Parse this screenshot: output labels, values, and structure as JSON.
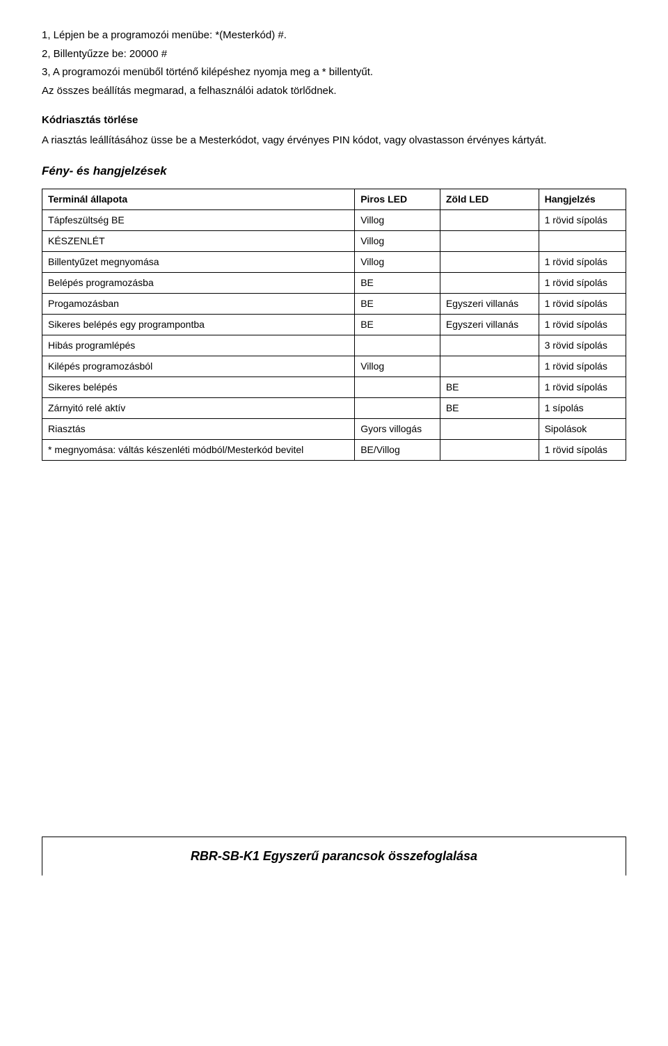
{
  "intro": {
    "line1": "1, Lépjen be a programozói menübe: *(Mesterkód) #.",
    "line2": "2, Billentyűzze be: 20000 #",
    "line3": "3, A programozói menüből történő kilépéshez nyomja meg a * billentyűt.",
    "line4": "Az összes beállítás megmarad, a felhasználói adatok törlődnek."
  },
  "kodriasztas": {
    "title": "Kódriasztás törlése",
    "body": "A riasztás leállításához üsse be a Mesterkódot, vagy érvényes PIN kódot, vagy olvastasson érvényes kártyát."
  },
  "feny": {
    "title": "Fény- és hangjelzések"
  },
  "table": {
    "headers": {
      "c0": "Terminál állapota",
      "c1": "Piros LED",
      "c2": "Zöld LED",
      "c3": "Hangjelzés"
    },
    "rows": [
      {
        "c0": "Tápfeszültség BE",
        "c1": "Villog",
        "c2": "",
        "c3": "1 rövid sípolás"
      },
      {
        "c0": "KÉSZENLÉT",
        "c1": "Villog",
        "c2": "",
        "c3": ""
      },
      {
        "c0": "Billentyűzet megnyomása",
        "c1": "Villog",
        "c2": "",
        "c3": "1 rövid sípolás"
      },
      {
        "c0": "Belépés programozásba",
        "c1": "BE",
        "c2": "",
        "c3": "1 rövid sípolás"
      },
      {
        "c0": "Progamozásban",
        "c1": "BE",
        "c2": "Egyszeri villanás",
        "c3": "1 rövid sípolás"
      },
      {
        "c0": "Sikeres belépés egy programpontba",
        "c1": "BE",
        "c2": "Egyszeri villanás",
        "c3": "1 rövid sípolás"
      },
      {
        "c0": "Hibás programlépés",
        "c1": "",
        "c2": "",
        "c3": "3 rövid sípolás"
      },
      {
        "c0": "Kilépés programozásból",
        "c1": "Villog",
        "c2": "",
        "c3": "1 rövid sípolás"
      },
      {
        "c0": "Sikeres belépés",
        "c1": "",
        "c2": "BE",
        "c3": "1 rövid sípolás"
      },
      {
        "c0": "Zárnyitó relé aktív",
        "c1": "",
        "c2": "BE",
        "c3": "1 sípolás"
      },
      {
        "c0": "Riasztás",
        "c1": "Gyors villogás",
        "c2": "",
        "c3": "Sipolások"
      },
      {
        "c0": "* megnyomása: váltás készenléti módból/Mesterkód bevitel",
        "c1": "BE/Villog",
        "c2": "",
        "c3": "1 rövid sípolás"
      }
    ]
  },
  "footer": {
    "text": "RBR-SB-K1 Egyszerű parancsok összefoglalása"
  },
  "style": {
    "page_bg": "#ffffff",
    "text_color": "#000000",
    "border_color": "#000000",
    "body_fontsize": 15,
    "footer_fontsize": 18,
    "table_fontsize": 14
  }
}
